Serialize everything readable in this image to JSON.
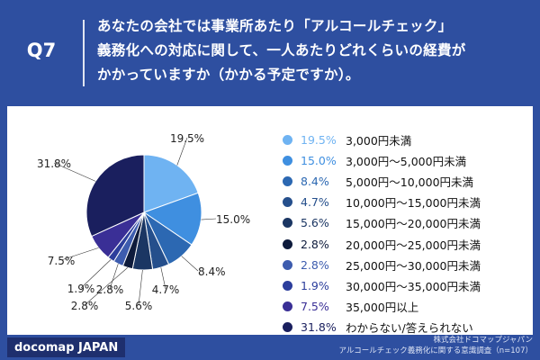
{
  "header": {
    "question_no": "Q7",
    "question_lines": [
      "あなたの会社では事業所あたり「アルコールチェック」",
      "義務化への対応に関して、一人あたりどれくらいの経費が",
      "かかっていますか（かかる予定ですか）。"
    ]
  },
  "chart_data": {
    "type": "pie",
    "title": "あなたの会社では事業所あたり「アルコールチェック」義務化への対応に関して、一人あたりどれくらいの経費がかかっていますか（かかる予定ですか）。",
    "unit": "%",
    "slices": [
      {
        "label": "3,000円未満",
        "value": 19.5,
        "value_label": "19.5%",
        "color": "#6fb3f2"
      },
      {
        "label": "3,000円～5,000円未満",
        "value": 15.0,
        "value_label": "15.0%",
        "color": "#3f8fe0"
      },
      {
        "label": "5,000円～10,000円未満",
        "value": 8.4,
        "value_label": "8.4%",
        "color": "#2c68b2"
      },
      {
        "label": "10,000円～15,000円未満",
        "value": 4.7,
        "value_label": "4.7%",
        "color": "#254f8c"
      },
      {
        "label": "15,000円～20,000円未満",
        "value": 5.6,
        "value_label": "5.6%",
        "color": "#1b3663"
      },
      {
        "label": "20,000円～25,000円未満",
        "value": 2.8,
        "value_label": "2.8%",
        "color": "#0e1b3c"
      },
      {
        "label": "25,000円～30,000円未満",
        "value": 2.8,
        "value_label": "2.8%",
        "color": "#3d5cae"
      },
      {
        "label": "30,000円～35,000円未満",
        "value": 1.9,
        "value_label": "1.9%",
        "color": "#2c3e9c"
      },
      {
        "label": "35,000円以上",
        "value": 7.5,
        "value_label": "7.5%",
        "color": "#3a2f96"
      },
      {
        "label": "わからない/答えられない",
        "value": 31.8,
        "value_label": "31.8%",
        "color": "#1a1f5e"
      }
    ],
    "legend_position": "right"
  },
  "footer": {
    "brand": "docomap JAPAN",
    "source_lines": [
      "株式会社ドコマップジャパン",
      "アルコールチェック義務化に関する意識調査（n=107）"
    ]
  }
}
